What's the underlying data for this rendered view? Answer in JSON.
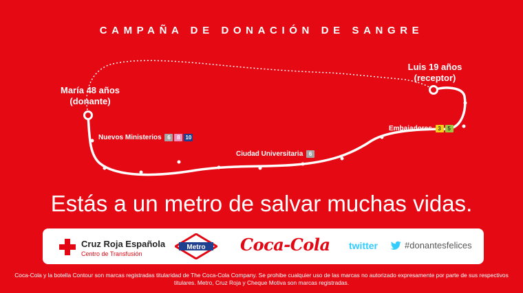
{
  "title": "CAMPAÑA DE DONACIÓN DE SANGRE",
  "donor": {
    "line1": "María 48 años",
    "line2": "(donante)"
  },
  "receiver": {
    "line1": "Luis 19 años",
    "line2": "(receptor)"
  },
  "stations": [
    {
      "name": "Nuevos Ministerios",
      "lines": [
        {
          "num": "6",
          "color": "#a5a5a5"
        },
        {
          "num": "8",
          "color": "#ee8ebc"
        },
        {
          "num": "10",
          "color": "#1f3f8f"
        }
      ]
    },
    {
      "name": "Ciudad Universitaria",
      "lines": [
        {
          "num": "6",
          "color": "#a5a5a5"
        }
      ]
    },
    {
      "name": "Embajadores",
      "lines": [
        {
          "num": "3",
          "color": "#f7d117"
        },
        {
          "num": "5",
          "color": "#9cc83c"
        }
      ]
    }
  ],
  "headline": "Estás a un metro de salvar muchas vidas.",
  "sponsors": {
    "cruz_roja_name": "Cruz Roja Española",
    "cruz_roja_sub": "Centro de Transfusión",
    "metro_label": "Metro",
    "coca_cola": "Coca-Cola",
    "twitter": "twitter",
    "hashtag": "#donantesfelices"
  },
  "legal": "Coca-Cola y la botella Contour son marcas registradas titularidad de The Coca-Cola Company. Se prohibe cualquier uso de las marcas no autorizado expresamente por parte de sus respectivos titulares. Metro, Cruz Roja y Cheque Motiva son marcas registradas.",
  "colors": {
    "background": "#e50914",
    "white": "#ffffff",
    "twitter_blue": "#33ccff",
    "metro_blue": "#1f3f8f"
  }
}
